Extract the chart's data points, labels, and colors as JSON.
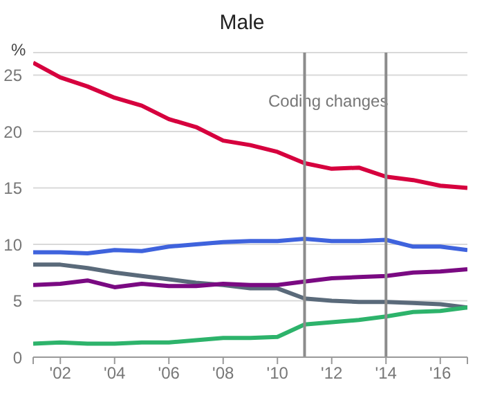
{
  "chart_data": {
    "type": "line",
    "title": "Male",
    "ylabel": "%",
    "x": [
      2001,
      2002,
      2003,
      2004,
      2005,
      2006,
      2007,
      2008,
      2009,
      2010,
      2011,
      2012,
      2013,
      2014,
      2015,
      2016,
      2017
    ],
    "series": [
      {
        "color": "#d6003e",
        "values": [
          26.1,
          24.8,
          24.0,
          23.0,
          22.3,
          21.1,
          20.4,
          19.2,
          18.8,
          18.2,
          17.2,
          16.7,
          16.8,
          16.0,
          15.7,
          15.2,
          15.0
        ]
      },
      {
        "color": "#3f63dd",
        "values": [
          9.3,
          9.3,
          9.2,
          9.5,
          9.4,
          9.8,
          10.0,
          10.2,
          10.3,
          10.3,
          10.5,
          10.3,
          10.3,
          10.4,
          9.8,
          9.8,
          9.5
        ]
      },
      {
        "color": "#5a6a7a",
        "values": [
          8.2,
          8.2,
          7.9,
          7.5,
          7.2,
          6.9,
          6.6,
          6.4,
          6.1,
          6.1,
          5.2,
          5.0,
          4.9,
          4.9,
          4.8,
          4.7,
          4.4
        ]
      },
      {
        "color": "#7a0a82",
        "values": [
          6.4,
          6.5,
          6.8,
          6.2,
          6.5,
          6.3,
          6.3,
          6.5,
          6.4,
          6.4,
          6.7,
          7.0,
          7.1,
          7.2,
          7.5,
          7.6,
          7.8
        ]
      },
      {
        "color": "#2db36b",
        "values": [
          1.2,
          1.3,
          1.2,
          1.2,
          1.3,
          1.3,
          1.5,
          1.7,
          1.7,
          1.8,
          2.9,
          3.1,
          3.3,
          3.6,
          4.0,
          4.1,
          4.4
        ]
      }
    ],
    "xlim": [
      2001,
      2017
    ],
    "xticks": [
      {
        "value": 2001,
        "label": null
      },
      {
        "value": 2002,
        "label": "'02"
      },
      {
        "value": 2004,
        "label": "'04"
      },
      {
        "value": 2006,
        "label": "'06"
      },
      {
        "value": 2008,
        "label": "'08"
      },
      {
        "value": 2010,
        "label": "'10"
      },
      {
        "value": 2012,
        "label": "'12"
      },
      {
        "value": 2014,
        "label": "'14"
      },
      {
        "value": 2016,
        "label": "'16"
      },
      {
        "value": 2017,
        "label": null
      }
    ],
    "ylim": [
      0,
      27
    ],
    "yticks": [
      0,
      5,
      10,
      15,
      20,
      25
    ],
    "grid": "y",
    "marker": "none",
    "ref_lines": [
      {
        "axis": "x",
        "value": 2011,
        "color": "#8c8c8c"
      },
      {
        "axis": "x",
        "value": 2014,
        "color": "#8c8c8c"
      }
    ],
    "annotations": [
      "Coding changes"
    ]
  }
}
